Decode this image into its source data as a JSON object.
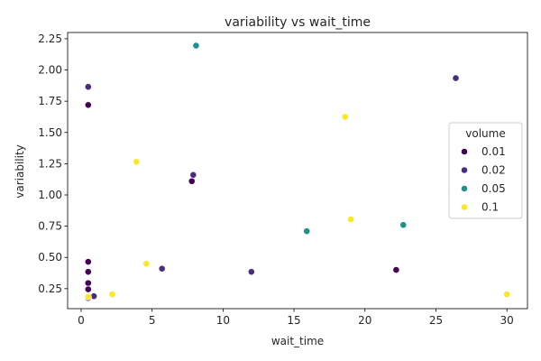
{
  "chart_data": {
    "type": "scatter",
    "title": "variability vs wait_time",
    "xlabel": "wait_time",
    "ylabel": "variability",
    "xlim": [
      -0.95,
      31.45
    ],
    "ylim": [
      0.09,
      2.3
    ],
    "xticks": [
      0,
      5,
      10,
      15,
      20,
      25,
      30
    ],
    "yticks": [
      0.25,
      0.5,
      0.75,
      1.0,
      1.25,
      1.5,
      1.75,
      2.0,
      2.25
    ],
    "xtick_labels": [
      "0",
      "5",
      "10",
      "15",
      "20",
      "25",
      "30"
    ],
    "ytick_labels": [
      "0.25",
      "0.50",
      "0.75",
      "1.00",
      "1.25",
      "1.50",
      "1.75",
      "2.00",
      "2.25"
    ],
    "grid": false,
    "legend": {
      "title": "volume",
      "placement": "center-right",
      "entries": [
        {
          "label": "0.01",
          "color": "#440154"
        },
        {
          "label": "0.02",
          "color": "#482f7e"
        },
        {
          "label": "0.05",
          "color": "#21918c"
        },
        {
          "label": "0.1",
          "color": "#fde725"
        }
      ]
    },
    "series": [
      {
        "hue": "0.01",
        "color": "#440154",
        "points": [
          {
            "x": 0.5,
            "y": 1.72
          },
          {
            "x": 7.8,
            "y": 1.11
          },
          {
            "x": 0.5,
            "y": 0.465
          },
          {
            "x": 0.5,
            "y": 0.385
          },
          {
            "x": 0.5,
            "y": 0.295
          },
          {
            "x": 0.5,
            "y": 0.245
          },
          {
            "x": 22.2,
            "y": 0.4
          }
        ]
      },
      {
        "hue": "0.02",
        "color": "#482f7e",
        "points": [
          {
            "x": 0.5,
            "y": 1.865
          },
          {
            "x": 26.4,
            "y": 1.935
          },
          {
            "x": 7.9,
            "y": 1.16
          },
          {
            "x": 5.7,
            "y": 0.41
          },
          {
            "x": 12.0,
            "y": 0.385
          },
          {
            "x": 0.9,
            "y": 0.19
          },
          {
            "x": 0.5,
            "y": 0.175
          }
        ]
      },
      {
        "hue": "0.05",
        "color": "#21918c",
        "points": [
          {
            "x": 8.1,
            "y": 2.195
          },
          {
            "x": 15.9,
            "y": 0.71
          },
          {
            "x": 22.7,
            "y": 0.76
          }
        ]
      },
      {
        "hue": "0.1",
        "color": "#fde725",
        "points": [
          {
            "x": 18.6,
            "y": 1.625
          },
          {
            "x": 3.9,
            "y": 1.265
          },
          {
            "x": 19.0,
            "y": 0.805
          },
          {
            "x": 4.6,
            "y": 0.45
          },
          {
            "x": 2.2,
            "y": 0.205
          },
          {
            "x": 30.0,
            "y": 0.205
          },
          {
            "x": 0.5,
            "y": 0.185
          }
        ]
      }
    ]
  }
}
